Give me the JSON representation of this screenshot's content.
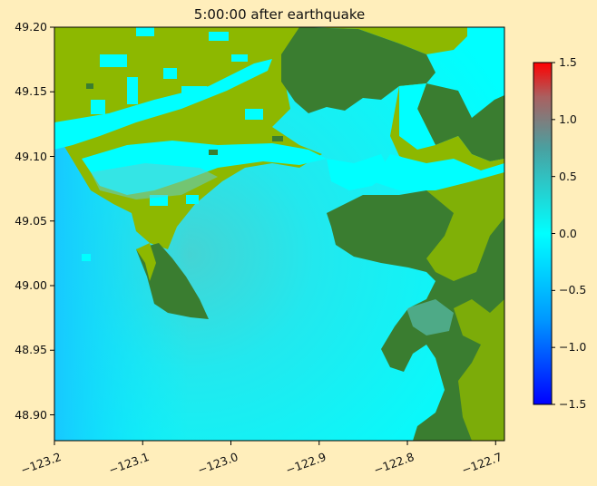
{
  "title": "5:00:00 after earthquake",
  "map": {
    "xlim": [
      -123.2,
      -122.69
    ],
    "ylim": [
      48.88,
      49.2
    ],
    "x_ticks": [
      "−123.2",
      "−123.1",
      "−123.0",
      "−122.9",
      "−122.8",
      "−122.7"
    ],
    "x_tick_values": [
      -123.2,
      -123.1,
      -123.0,
      -122.9,
      -122.8,
      -122.7
    ],
    "y_ticks": [
      "49.20",
      "49.15",
      "49.10",
      "49.05",
      "49.00",
      "48.95",
      "48.90"
    ],
    "y_tick_values": [
      49.2,
      49.15,
      49.1,
      49.05,
      49.0,
      48.95,
      48.9
    ],
    "colors": {
      "water": "#00ffff",
      "land_low": "#8db800",
      "land_high": "#3a7d30",
      "shallow_flood": "#5ecfcf",
      "background": "#ffeebb"
    }
  },
  "colorbar": {
    "ticks": [
      "1.5",
      "1.0",
      "0.5",
      "0.0",
      "−0.5",
      "−1.0",
      "−1.5"
    ],
    "tick_values": [
      1.5,
      1.0,
      0.5,
      0.0,
      -0.5,
      -1.0,
      -1.5
    ],
    "range": [
      -1.5,
      1.5
    ],
    "colors": [
      "#0000ff",
      "#00ffff",
      "#ff0000"
    ]
  }
}
